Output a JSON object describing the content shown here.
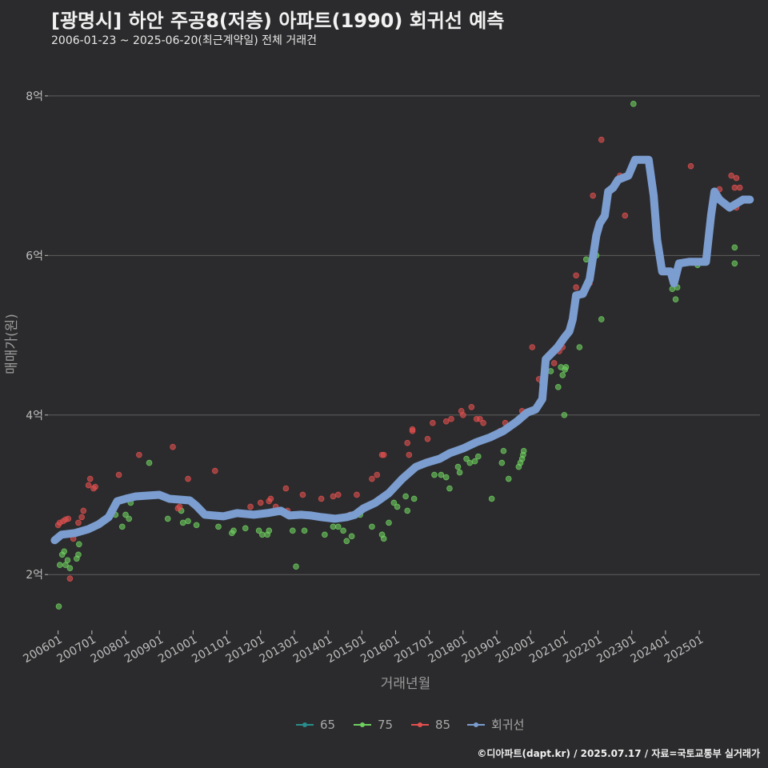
{
  "header": {
    "title": "[광명시] 하안 주공8(저층) 아파트(1990) 회귀선 예측",
    "subtitle": "2006-01-23 ~ 2025-06-20(최근계약일) 전체 거래건"
  },
  "footer": {
    "caption": "©디아파트(dapt.kr) / 2025.07.17 / 자료=국토교통부 실거래가"
  },
  "colors": {
    "background": "#2b2b2d",
    "grid": "#5e5e5e",
    "s65": "#2a8c8c",
    "s75": "#6fd15f",
    "s85": "#e3504f",
    "regression": "#7b9dcf"
  },
  "chart_data": {
    "type": "scatter",
    "xlabel": "거래년월",
    "ylabel": "매매가(원)",
    "x_range": [
      2005.7,
      2026.8
    ],
    "ylim": [
      1.3,
      8.4
    ],
    "y_ticks": [
      {
        "value": 2,
        "label": "2억"
      },
      {
        "value": 4,
        "label": "4억"
      },
      {
        "value": 6,
        "label": "6억"
      },
      {
        "value": 8,
        "label": "8억"
      }
    ],
    "x_ticks": [
      {
        "value": 2006,
        "label": "200601"
      },
      {
        "value": 2007,
        "label": "200701"
      },
      {
        "value": 2008,
        "label": "200801"
      },
      {
        "value": 2009,
        "label": "200901"
      },
      {
        "value": 2010,
        "label": "201001"
      },
      {
        "value": 2011,
        "label": "201101"
      },
      {
        "value": 2012,
        "label": "201201"
      },
      {
        "value": 2013,
        "label": "201301"
      },
      {
        "value": 2014,
        "label": "201401"
      },
      {
        "value": 2015,
        "label": "201501"
      },
      {
        "value": 2016,
        "label": "201601"
      },
      {
        "value": 2017,
        "label": "201701"
      },
      {
        "value": 2018,
        "label": "201801"
      },
      {
        "value": 2019,
        "label": "201901"
      },
      {
        "value": 2020,
        "label": "202001"
      },
      {
        "value": 2021,
        "label": "202101"
      },
      {
        "value": 2022,
        "label": "202201"
      },
      {
        "value": 2023,
        "label": "202301"
      },
      {
        "value": 2024,
        "label": "202401"
      },
      {
        "value": 2025,
        "label": "202501"
      }
    ],
    "legend": {
      "position": "bottom",
      "items": [
        {
          "key": "s65",
          "label": "65"
        },
        {
          "key": "s75",
          "label": "75"
        },
        {
          "key": "s85",
          "label": "85"
        },
        {
          "key": "regression",
          "label": "회귀선"
        }
      ]
    },
    "series": [
      {
        "key": "s75",
        "points": [
          [
            2006.02,
            1.6
          ],
          [
            2006.05,
            2.12
          ],
          [
            2006.12,
            2.25
          ],
          [
            2006.18,
            2.29
          ],
          [
            2006.22,
            2.12
          ],
          [
            2006.28,
            2.18
          ],
          [
            2006.35,
            2.08
          ],
          [
            2006.55,
            2.2
          ],
          [
            2006.62,
            2.38
          ],
          [
            2006.6,
            2.25
          ],
          [
            2007.7,
            2.75
          ],
          [
            2007.9,
            2.6
          ],
          [
            2008.0,
            2.75
          ],
          [
            2008.1,
            2.7
          ],
          [
            2008.15,
            2.9
          ],
          [
            2008.7,
            3.4
          ],
          [
            2009.25,
            2.7
          ],
          [
            2009.7,
            2.65
          ],
          [
            2009.85,
            2.67
          ],
          [
            2009.65,
            2.8
          ],
          [
            2010.1,
            2.62
          ],
          [
            2010.75,
            2.6
          ],
          [
            2011.15,
            2.52
          ],
          [
            2011.2,
            2.55
          ],
          [
            2011.55,
            2.58
          ],
          [
            2011.95,
            2.55
          ],
          [
            2012.05,
            2.5
          ],
          [
            2012.2,
            2.5
          ],
          [
            2012.25,
            2.55
          ],
          [
            2012.95,
            2.55
          ],
          [
            2013.05,
            2.1
          ],
          [
            2013.3,
            2.55
          ],
          [
            2013.9,
            2.5
          ],
          [
            2014.15,
            2.6
          ],
          [
            2014.3,
            2.6
          ],
          [
            2014.45,
            2.55
          ],
          [
            2014.55,
            2.42
          ],
          [
            2014.7,
            2.48
          ],
          [
            2014.95,
            2.75
          ],
          [
            2015.3,
            2.6
          ],
          [
            2015.6,
            2.5
          ],
          [
            2015.65,
            2.45
          ],
          [
            2015.8,
            2.65
          ],
          [
            2015.95,
            2.9
          ],
          [
            2016.05,
            2.85
          ],
          [
            2016.35,
            2.8
          ],
          [
            2016.55,
            2.95
          ],
          [
            2016.3,
            2.98
          ],
          [
            2017.15,
            3.25
          ],
          [
            2017.35,
            3.25
          ],
          [
            2017.5,
            3.22
          ],
          [
            2017.6,
            3.08
          ],
          [
            2017.9,
            3.28
          ],
          [
            2017.85,
            3.35
          ],
          [
            2018.1,
            3.45
          ],
          [
            2018.2,
            3.4
          ],
          [
            2018.35,
            3.42
          ],
          [
            2019.35,
            3.2
          ],
          [
            2018.45,
            3.48
          ],
          [
            2018.85,
            2.95
          ],
          [
            2019.15,
            3.4
          ],
          [
            2019.2,
            3.55
          ],
          [
            2019.65,
            3.35
          ],
          [
            2019.7,
            3.4
          ],
          [
            2019.75,
            3.45
          ],
          [
            2019.78,
            3.5
          ],
          [
            2019.8,
            3.55
          ],
          [
            2020.35,
            4.4
          ],
          [
            2020.35,
            4.25
          ],
          [
            2020.6,
            4.55
          ],
          [
            2020.82,
            4.35
          ],
          [
            2020.9,
            4.6
          ],
          [
            2020.95,
            4.5
          ],
          [
            2021.02,
            4.57
          ],
          [
            2021.05,
            4.6
          ],
          [
            2021.0,
            4.0
          ],
          [
            2021.45,
            4.85
          ],
          [
            2021.65,
            5.95
          ],
          [
            2021.95,
            6.0
          ],
          [
            2022.1,
            5.2
          ],
          [
            2023.05,
            7.9
          ],
          [
            2024.3,
            5.45
          ],
          [
            2024.35,
            5.6
          ],
          [
            2024.95,
            5.88
          ],
          [
            2026.05,
            5.9
          ],
          [
            2026.05,
            6.1
          ],
          [
            2024.2,
            5.58
          ]
        ]
      },
      {
        "key": "s85",
        "points": [
          [
            2006.0,
            2.62
          ],
          [
            2006.05,
            2.65
          ],
          [
            2006.15,
            2.67
          ],
          [
            2006.22,
            2.69
          ],
          [
            2006.3,
            2.7
          ],
          [
            2006.35,
            1.95
          ],
          [
            2006.45,
            2.45
          ],
          [
            2006.6,
            2.65
          ],
          [
            2006.7,
            2.72
          ],
          [
            2006.75,
            2.8
          ],
          [
            2006.9,
            3.12
          ],
          [
            2006.95,
            3.2
          ],
          [
            2007.05,
            3.08
          ],
          [
            2007.1,
            3.1
          ],
          [
            2007.8,
            3.25
          ],
          [
            2008.4,
            3.5
          ],
          [
            2009.4,
            3.6
          ],
          [
            2008.95,
            3.0
          ],
          [
            2009.55,
            2.83
          ],
          [
            2009.6,
            2.85
          ],
          [
            2009.85,
            3.2
          ],
          [
            2010.65,
            3.3
          ],
          [
            2010.1,
            2.85
          ],
          [
            2011.0,
            2.75
          ],
          [
            2011.7,
            2.85
          ],
          [
            2012.0,
            2.9
          ],
          [
            2012.3,
            2.95
          ],
          [
            2012.25,
            2.92
          ],
          [
            2012.45,
            2.85
          ],
          [
            2012.75,
            3.08
          ],
          [
            2012.8,
            2.8
          ],
          [
            2013.25,
            3.0
          ],
          [
            2013.8,
            2.95
          ],
          [
            2014.15,
            2.98
          ],
          [
            2014.3,
            3.0
          ],
          [
            2014.65,
            2.75
          ],
          [
            2014.85,
            3.0
          ],
          [
            2015.3,
            3.2
          ],
          [
            2015.45,
            3.25
          ],
          [
            2015.6,
            3.5
          ],
          [
            2015.65,
            3.5
          ],
          [
            2016.35,
            3.65
          ],
          [
            2016.4,
            3.5
          ],
          [
            2016.5,
            3.8
          ],
          [
            2016.5,
            3.82
          ],
          [
            2016.95,
            3.7
          ],
          [
            2017.1,
            3.9
          ],
          [
            2017.5,
            3.92
          ],
          [
            2017.65,
            3.95
          ],
          [
            2017.95,
            4.05
          ],
          [
            2018.0,
            4.0
          ],
          [
            2018.25,
            4.1
          ],
          [
            2018.4,
            3.95
          ],
          [
            2018.5,
            3.95
          ],
          [
            2018.6,
            3.9
          ],
          [
            2018.75,
            3.7
          ],
          [
            2019.1,
            3.8
          ],
          [
            2019.25,
            3.9
          ],
          [
            2019.75,
            4.05
          ],
          [
            2019.8,
            4.02
          ],
          [
            2020.05,
            4.85
          ],
          [
            2020.25,
            4.45
          ],
          [
            2020.7,
            4.65
          ],
          [
            2020.85,
            4.8
          ],
          [
            2020.95,
            4.85
          ],
          [
            2021.35,
            5.75
          ],
          [
            2021.35,
            5.6
          ],
          [
            2021.8,
            5.8
          ],
          [
            2021.75,
            5.65
          ],
          [
            2021.85,
            6.75
          ],
          [
            2022.1,
            7.45
          ],
          [
            2022.65,
            7.0
          ],
          [
            2022.8,
            6.5
          ],
          [
            2024.75,
            7.12
          ],
          [
            2025.95,
            7.0
          ],
          [
            2026.05,
            6.85
          ],
          [
            2026.1,
            6.97
          ],
          [
            2026.2,
            6.85
          ],
          [
            2026.1,
            6.6
          ],
          [
            2025.6,
            6.83
          ]
        ]
      },
      {
        "key": "s65",
        "points": []
      },
      {
        "key": "regression",
        "line": [
          [
            2005.9,
            2.43
          ],
          [
            2006.1,
            2.5
          ],
          [
            2006.5,
            2.52
          ],
          [
            2006.9,
            2.57
          ],
          [
            2007.2,
            2.63
          ],
          [
            2007.5,
            2.72
          ],
          [
            2007.75,
            2.92
          ],
          [
            2008.0,
            2.95
          ],
          [
            2008.3,
            2.98
          ],
          [
            2009.0,
            3.0
          ],
          [
            2009.3,
            2.95
          ],
          [
            2009.9,
            2.93
          ],
          [
            2010.1,
            2.86
          ],
          [
            2010.35,
            2.75
          ],
          [
            2010.6,
            2.74
          ],
          [
            2010.9,
            2.73
          ],
          [
            2011.3,
            2.77
          ],
          [
            2011.8,
            2.75
          ],
          [
            2012.2,
            2.77
          ],
          [
            2012.6,
            2.8
          ],
          [
            2012.85,
            2.74
          ],
          [
            2013.2,
            2.75
          ],
          [
            2013.5,
            2.74
          ],
          [
            2013.8,
            2.72
          ],
          [
            2014.2,
            2.7
          ],
          [
            2014.55,
            2.72
          ],
          [
            2014.8,
            2.75
          ],
          [
            2015.05,
            2.83
          ],
          [
            2015.4,
            2.9
          ],
          [
            2015.8,
            3.02
          ],
          [
            2016.2,
            3.2
          ],
          [
            2016.6,
            3.35
          ],
          [
            2016.9,
            3.4
          ],
          [
            2017.3,
            3.45
          ],
          [
            2017.6,
            3.52
          ],
          [
            2018.0,
            3.58
          ],
          [
            2018.4,
            3.66
          ],
          [
            2018.8,
            3.72
          ],
          [
            2019.2,
            3.8
          ],
          [
            2019.6,
            3.92
          ],
          [
            2019.9,
            4.03
          ],
          [
            2020.15,
            4.07
          ],
          [
            2020.35,
            4.2
          ],
          [
            2020.45,
            4.7
          ],
          [
            2020.8,
            4.85
          ],
          [
            2021.0,
            4.97
          ],
          [
            2021.15,
            5.05
          ],
          [
            2021.25,
            5.2
          ],
          [
            2021.35,
            5.5
          ],
          [
            2021.55,
            5.52
          ],
          [
            2021.75,
            5.7
          ],
          [
            2021.95,
            6.25
          ],
          [
            2022.05,
            6.4
          ],
          [
            2022.2,
            6.5
          ],
          [
            2022.3,
            6.8
          ],
          [
            2022.45,
            6.85
          ],
          [
            2022.6,
            6.95
          ],
          [
            2022.9,
            7.0
          ],
          [
            2023.1,
            7.2
          ],
          [
            2023.5,
            7.2
          ],
          [
            2023.65,
            6.75
          ],
          [
            2023.75,
            6.2
          ],
          [
            2023.9,
            5.8
          ],
          [
            2024.15,
            5.8
          ],
          [
            2024.25,
            5.65
          ],
          [
            2024.4,
            5.9
          ],
          [
            2024.7,
            5.92
          ],
          [
            2025.2,
            5.92
          ],
          [
            2025.35,
            6.5
          ],
          [
            2025.45,
            6.8
          ],
          [
            2025.6,
            6.7
          ],
          [
            2025.75,
            6.65
          ],
          [
            2025.9,
            6.6
          ],
          [
            2026.1,
            6.65
          ],
          [
            2026.3,
            6.7
          ],
          [
            2026.5,
            6.7
          ]
        ]
      }
    ]
  }
}
